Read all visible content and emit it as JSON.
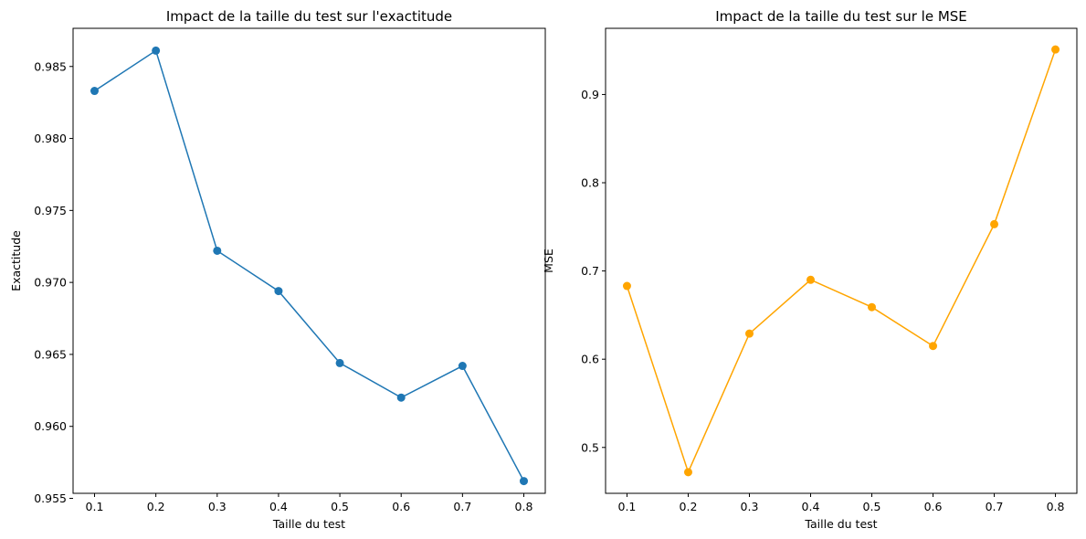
{
  "chart_data": [
    {
      "type": "line",
      "title": "Impact de la taille du test sur l'exactitude",
      "xlabel": "Taille du test",
      "ylabel": "Exactitude",
      "x": [
        0.1,
        0.2,
        0.3,
        0.4,
        0.5,
        0.6,
        0.7,
        0.8
      ],
      "x_tick_labels": [
        "0.1",
        "0.2",
        "0.3",
        "0.4",
        "0.5",
        "0.6",
        "0.7",
        "0.8"
      ],
      "y_ticks": [
        0.955,
        0.96,
        0.965,
        0.97,
        0.975,
        0.98,
        0.985
      ],
      "y_tick_labels": [
        "0.955",
        "0.960",
        "0.965",
        "0.970",
        "0.975",
        "0.980",
        "0.985"
      ],
      "xlim": [
        0.065,
        0.835
      ],
      "ylim": [
        0.95535,
        0.98765
      ],
      "series": [
        {
          "color": "#1f77b4",
          "marker": "circle",
          "values": [
            0.9833,
            0.9861,
            0.9722,
            0.9694,
            0.9644,
            0.962,
            0.9642,
            0.9562
          ]
        }
      ],
      "grid": false,
      "legend": "none"
    },
    {
      "type": "line",
      "title": "Impact de la taille du test sur le MSE",
      "xlabel": "Taille du test",
      "ylabel": "MSE",
      "x": [
        0.1,
        0.2,
        0.3,
        0.4,
        0.5,
        0.6,
        0.7,
        0.8
      ],
      "x_tick_labels": [
        "0.1",
        "0.2",
        "0.3",
        "0.4",
        "0.5",
        "0.6",
        "0.7",
        "0.8"
      ],
      "y_ticks": [
        0.5,
        0.6,
        0.7,
        0.8,
        0.9
      ],
      "y_tick_labels": [
        "0.5",
        "0.6",
        "0.7",
        "0.8",
        "0.9"
      ],
      "xlim": [
        0.065,
        0.835
      ],
      "ylim": [
        0.448,
        0.975
      ],
      "series": [
        {
          "color": "#ffa500",
          "marker": "circle",
          "values": [
            0.683,
            0.472,
            0.629,
            0.69,
            0.659,
            0.615,
            0.753,
            0.951
          ]
        }
      ],
      "grid": false,
      "legend": "none"
    }
  ]
}
